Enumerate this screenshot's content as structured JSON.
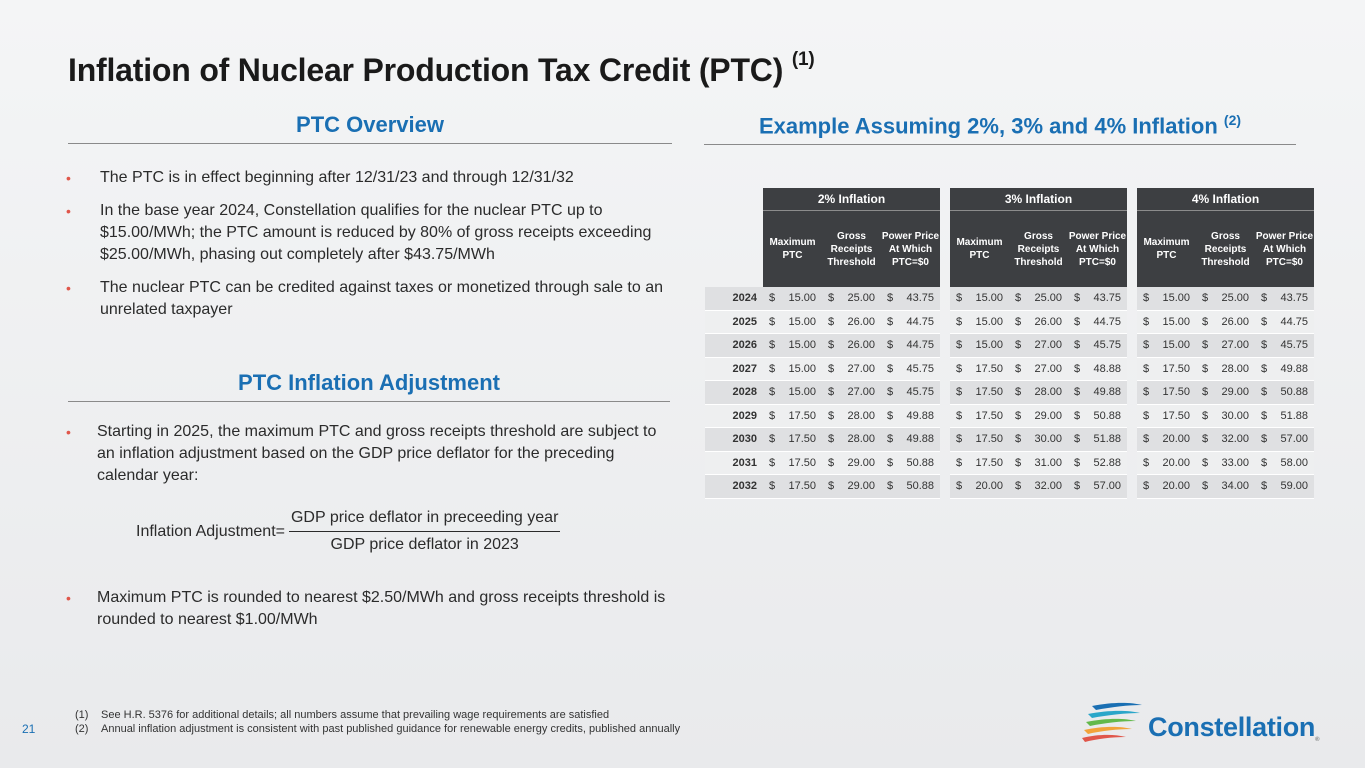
{
  "title": "Inflation of Nuclear Production Tax Credit (PTC)",
  "title_note": "(1)",
  "overview": {
    "heading": "PTC Overview",
    "bullets": [
      "The PTC is in effect beginning after 12/31/23 and through 12/31/32",
      "In the base year 2024, Constellation qualifies for the nuclear PTC up to $15.00/MWh; the PTC amount is reduced by 80% of gross receipts exceeding $25.00/MWh, phasing out completely after $43.75/MWh",
      "The nuclear PTC can be credited against taxes or monetized through sale to an unrelated taxpayer"
    ]
  },
  "inflation": {
    "heading": "PTC Inflation Adjustment",
    "bullet_1": "Starting in 2025, the maximum PTC and gross receipts threshold are subject to an inflation adjustment based on the GDP price deflator for the preceding calendar year:",
    "formula_label": "Inflation Adjustment=",
    "formula_numerator": "GDP price deflator in preceeding year",
    "formula_denominator": "GDP price deflator in 2023",
    "bullet_2": "Maximum PTC is rounded to nearest $2.50/MWh and gross receipts threshold is rounded to nearest $1.00/MWh"
  },
  "example": {
    "heading": "Example Assuming 2%, 3% and 4% Inflation",
    "heading_note": "(2)",
    "groups": [
      "2% Inflation",
      "3% Inflation",
      "4% Inflation"
    ],
    "columns": [
      "Maximum PTC",
      "Gross Receipts Threshold",
      "Power Price At Which PTC=$0"
    ],
    "currency": "$",
    "rows": [
      {
        "year": "2024",
        "values": [
          "15.00",
          "25.00",
          "43.75",
          "15.00",
          "25.00",
          "43.75",
          "15.00",
          "25.00",
          "43.75"
        ]
      },
      {
        "year": "2025",
        "values": [
          "15.00",
          "26.00",
          "44.75",
          "15.00",
          "26.00",
          "44.75",
          "15.00",
          "26.00",
          "44.75"
        ]
      },
      {
        "year": "2026",
        "values": [
          "15.00",
          "26.00",
          "44.75",
          "15.00",
          "27.00",
          "45.75",
          "15.00",
          "27.00",
          "45.75"
        ]
      },
      {
        "year": "2027",
        "values": [
          "15.00",
          "27.00",
          "45.75",
          "17.50",
          "27.00",
          "48.88",
          "17.50",
          "28.00",
          "49.88"
        ]
      },
      {
        "year": "2028",
        "values": [
          "15.00",
          "27.00",
          "45.75",
          "17.50",
          "28.00",
          "49.88",
          "17.50",
          "29.00",
          "50.88"
        ]
      },
      {
        "year": "2029",
        "values": [
          "17.50",
          "28.00",
          "49.88",
          "17.50",
          "29.00",
          "50.88",
          "17.50",
          "30.00",
          "51.88"
        ]
      },
      {
        "year": "2030",
        "values": [
          "17.50",
          "28.00",
          "49.88",
          "17.50",
          "30.00",
          "51.88",
          "20.00",
          "32.00",
          "57.00"
        ]
      },
      {
        "year": "2031",
        "values": [
          "17.50",
          "29.00",
          "50.88",
          "17.50",
          "31.00",
          "52.88",
          "20.00",
          "33.00",
          "58.00"
        ]
      },
      {
        "year": "2032",
        "values": [
          "17.50",
          "29.00",
          "50.88",
          "20.00",
          "32.00",
          "57.00",
          "20.00",
          "34.00",
          "59.00"
        ]
      }
    ]
  },
  "footnotes": [
    {
      "mark": "(1)",
      "text": "See H.R. 5376 for additional details; all numbers assume that prevailing wage requirements are satisfied"
    },
    {
      "mark": "(2)",
      "text": "Annual inflation adjustment is consistent with past published guidance for renewable energy credits, published annually"
    }
  ],
  "page_number": "21",
  "logo": {
    "name": "Constellation",
    "mark": "®"
  },
  "colors": {
    "accent_blue": "#1a6fb3",
    "bullet_red": "#e0564a",
    "table_header": "#3d3f42"
  }
}
